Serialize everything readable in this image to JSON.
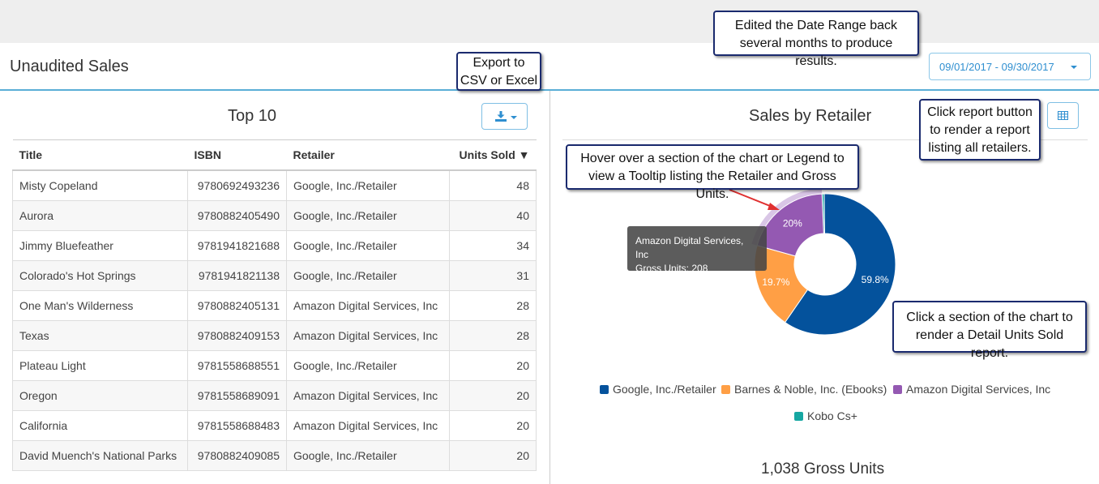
{
  "header": {
    "title": "Unaudited Sales",
    "date_range": "09/01/2017 - 09/30/2017"
  },
  "top10": {
    "title": "Top 10",
    "columns": [
      "Title",
      "ISBN",
      "Retailer",
      "Units Sold ▼"
    ],
    "rows": [
      [
        "Misty Copeland",
        "9780692493236",
        "Google, Inc./Retailer",
        "48"
      ],
      [
        "Aurora",
        "9780882405490",
        "Google, Inc./Retailer",
        "40"
      ],
      [
        "Jimmy Bluefeather",
        "9781941821688",
        "Google, Inc./Retailer",
        "34"
      ],
      [
        "Colorado's Hot Springs",
        "9781941821138",
        "Google, Inc./Retailer",
        "31"
      ],
      [
        "One Man's Wilderness",
        "9780882405131",
        "Amazon Digital Services, Inc",
        "28"
      ],
      [
        "Texas",
        "9780882409153",
        "Amazon Digital Services, Inc",
        "28"
      ],
      [
        "Plateau Light",
        "9781558688551",
        "Google, Inc./Retailer",
        "20"
      ],
      [
        "Oregon",
        "9781558689091",
        "Amazon Digital Services, Inc",
        "20"
      ],
      [
        "California",
        "9781558688483",
        "Amazon Digital Services, Inc",
        "20"
      ],
      [
        "David Muench's National Parks",
        "9780882409085",
        "Google, Inc./Retailer",
        "20"
      ]
    ]
  },
  "retailer_chart": {
    "title": "Sales by Retailer",
    "tooltip_retailer": "Amazon Digital Services, Inc",
    "tooltip_units": "Gross Units: 208",
    "gross_total": "1,038 Gross Units",
    "legend": [
      {
        "label": "Google, Inc./Retailer",
        "color": "#04529c"
      },
      {
        "label": "Barnes & Noble, Inc. (Ebooks)",
        "color": "#ff9f45"
      },
      {
        "label": "Amazon Digital Services, Inc",
        "color": "#9459b2"
      },
      {
        "label": "Kobo Cs+",
        "color": "#16a7a2"
      }
    ]
  },
  "chart_data": {
    "type": "pie",
    "title": "Sales by Retailer",
    "categories": [
      "Google, Inc./Retailer",
      "Barnes & Noble, Inc. (Ebooks)",
      "Amazon Digital Services, Inc",
      "Kobo Cs+"
    ],
    "values": [
      59.8,
      19.7,
      20.0,
      0.5
    ],
    "value_labels": [
      "59.8%",
      "19.7%",
      "20%",
      ""
    ],
    "colors": [
      "#04529c",
      "#ff9f45",
      "#9459b2",
      "#16a7a2"
    ],
    "donut": true
  },
  "callouts": {
    "export": "Export to CSV or Excel",
    "date_range": "Edited the Date Range back several months to produce results.",
    "report": "Click report button to render a report listing all retailers.",
    "hover": "Hover over a section of the chart or Legend to view a Tooltip listing the Retailer and Gross Units.",
    "click": "Click a section of the chart to render a Detail Units Sold report."
  },
  "icons": {
    "export": "download-icon",
    "report": "table-icon",
    "date_caret": "caret-down-icon"
  }
}
